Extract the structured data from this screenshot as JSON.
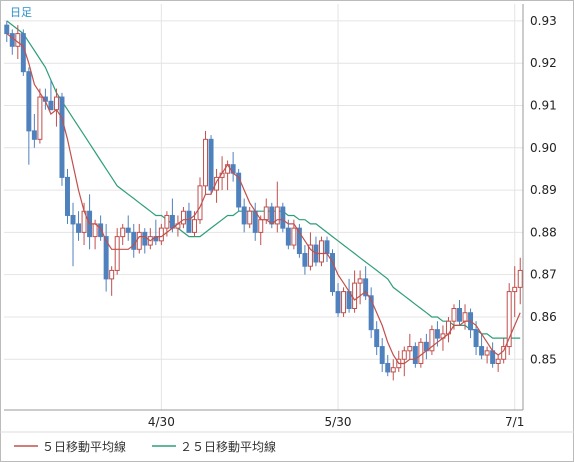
{
  "badge_label": "日足",
  "colors": {
    "bull": "#c0504d",
    "bear": "#4f81bd",
    "ma5": "#c0504d",
    "ma25": "#2e9e78",
    "grid": "#e4e4e4",
    "axis": "#999999"
  },
  "legend": [
    {
      "name": "５日移動平均線",
      "color": "#c0504d"
    },
    {
      "name": "２５日移動平均線",
      "color": "#2e9e78"
    }
  ],
  "chart_data": {
    "type": "candlestick",
    "ylim": [
      0.838,
      0.934
    ],
    "y_ticks": [
      0.85,
      0.86,
      0.87,
      0.88,
      0.89,
      0.9,
      0.91,
      0.92,
      0.93
    ],
    "y_tick_labels": [
      "0.85",
      "0.86",
      "0.87",
      "0.88",
      "0.89",
      "0.90",
      "0.91",
      "0.92",
      "0.93"
    ],
    "x_ticks": [
      {
        "index": 28,
        "label": "4/30"
      },
      {
        "index": 60,
        "label": "5/30"
      },
      {
        "index": 92,
        "label": "7/1"
      }
    ],
    "candles": [
      [
        0.929,
        0.93,
        0.925,
        0.927
      ],
      [
        0.927,
        0.928,
        0.922,
        0.924
      ],
      [
        0.924,
        0.929,
        0.921,
        0.927
      ],
      [
        0.927,
        0.928,
        0.917,
        0.918
      ],
      [
        0.918,
        0.919,
        0.896,
        0.904
      ],
      [
        0.904,
        0.908,
        0.9,
        0.902
      ],
      [
        0.902,
        0.914,
        0.901,
        0.912
      ],
      [
        0.912,
        0.914,
        0.909,
        0.911
      ],
      [
        0.911,
        0.916,
        0.909,
        0.909
      ],
      [
        0.909,
        0.914,
        0.905,
        0.912
      ],
      [
        0.912,
        0.913,
        0.891,
        0.893
      ],
      [
        0.893,
        0.895,
        0.882,
        0.884
      ],
      [
        0.884,
        0.887,
        0.872,
        0.882
      ],
      [
        0.882,
        0.885,
        0.878,
        0.88
      ],
      [
        0.88,
        0.887,
        0.877,
        0.885
      ],
      [
        0.885,
        0.889,
        0.876,
        0.879
      ],
      [
        0.879,
        0.883,
        0.876,
        0.882
      ],
      [
        0.882,
        0.884,
        0.878,
        0.879
      ],
      [
        0.879,
        0.882,
        0.866,
        0.869
      ],
      [
        0.869,
        0.872,
        0.865,
        0.871
      ],
      [
        0.871,
        0.881,
        0.87,
        0.879
      ],
      [
        0.879,
        0.882,
        0.877,
        0.881
      ],
      [
        0.881,
        0.884,
        0.878,
        0.88
      ],
      [
        0.88,
        0.882,
        0.874,
        0.876
      ],
      [
        0.876,
        0.882,
        0.875,
        0.88
      ],
      [
        0.88,
        0.881,
        0.875,
        0.877
      ],
      [
        0.877,
        0.881,
        0.876,
        0.879
      ],
      [
        0.879,
        0.883,
        0.877,
        0.878
      ],
      [
        0.878,
        0.882,
        0.877,
        0.881
      ],
      [
        0.881,
        0.885,
        0.879,
        0.884
      ],
      [
        0.884,
        0.888,
        0.88,
        0.881
      ],
      [
        0.881,
        0.884,
        0.879,
        0.882
      ],
      [
        0.882,
        0.886,
        0.881,
        0.885
      ],
      [
        0.885,
        0.887,
        0.88,
        0.88
      ],
      [
        0.88,
        0.885,
        0.879,
        0.883
      ],
      [
        0.883,
        0.893,
        0.882,
        0.891
      ],
      [
        0.891,
        0.904,
        0.889,
        0.902
      ],
      [
        0.902,
        0.903,
        0.889,
        0.89
      ],
      [
        0.89,
        0.895,
        0.887,
        0.893
      ],
      [
        0.893,
        0.898,
        0.89,
        0.894
      ],
      [
        0.894,
        0.897,
        0.89,
        0.896
      ],
      [
        0.896,
        0.899,
        0.892,
        0.894
      ],
      [
        0.894,
        0.895,
        0.885,
        0.886
      ],
      [
        0.886,
        0.888,
        0.88,
        0.882
      ],
      [
        0.882,
        0.886,
        0.881,
        0.885
      ],
      [
        0.885,
        0.887,
        0.878,
        0.88
      ],
      [
        0.88,
        0.884,
        0.877,
        0.883
      ],
      [
        0.883,
        0.888,
        0.882,
        0.886
      ],
      [
        0.886,
        0.887,
        0.881,
        0.882
      ],
      [
        0.882,
        0.892,
        0.88,
        0.886
      ],
      [
        0.886,
        0.887,
        0.88,
        0.881
      ],
      [
        0.881,
        0.883,
        0.876,
        0.877
      ],
      [
        0.877,
        0.883,
        0.876,
        0.881
      ],
      [
        0.881,
        0.882,
        0.874,
        0.875
      ],
      [
        0.875,
        0.877,
        0.87,
        0.872
      ],
      [
        0.872,
        0.88,
        0.871,
        0.877
      ],
      [
        0.877,
        0.879,
        0.872,
        0.873
      ],
      [
        0.873,
        0.879,
        0.872,
        0.878
      ],
      [
        0.878,
        0.879,
        0.873,
        0.875
      ],
      [
        0.875,
        0.876,
        0.865,
        0.866
      ],
      [
        0.866,
        0.868,
        0.86,
        0.861
      ],
      [
        0.861,
        0.867,
        0.86,
        0.866
      ],
      [
        0.866,
        0.869,
        0.861,
        0.862
      ],
      [
        0.862,
        0.871,
        0.861,
        0.868
      ],
      [
        0.868,
        0.871,
        0.863,
        0.869
      ],
      [
        0.869,
        0.872,
        0.864,
        0.865
      ],
      [
        0.865,
        0.867,
        0.855,
        0.857
      ],
      [
        0.857,
        0.859,
        0.851,
        0.853
      ],
      [
        0.853,
        0.855,
        0.847,
        0.849
      ],
      [
        0.849,
        0.851,
        0.846,
        0.847
      ],
      [
        0.847,
        0.85,
        0.845,
        0.848
      ],
      [
        0.848,
        0.852,
        0.847,
        0.85
      ],
      [
        0.85,
        0.853,
        0.846,
        0.852
      ],
      [
        0.852,
        0.856,
        0.85,
        0.853
      ],
      [
        0.853,
        0.854,
        0.848,
        0.849
      ],
      [
        0.849,
        0.855,
        0.848,
        0.854
      ],
      [
        0.854,
        0.856,
        0.85,
        0.852
      ],
      [
        0.852,
        0.858,
        0.851,
        0.857
      ],
      [
        0.857,
        0.859,
        0.853,
        0.855
      ],
      [
        0.855,
        0.858,
        0.852,
        0.856
      ],
      [
        0.856,
        0.86,
        0.854,
        0.859
      ],
      [
        0.859,
        0.863,
        0.857,
        0.862
      ],
      [
        0.862,
        0.864,
        0.858,
        0.859
      ],
      [
        0.859,
        0.863,
        0.857,
        0.861
      ],
      [
        0.861,
        0.862,
        0.855,
        0.857
      ],
      [
        0.857,
        0.859,
        0.851,
        0.853
      ],
      [
        0.853,
        0.856,
        0.85,
        0.851
      ],
      [
        0.851,
        0.853,
        0.849,
        0.852
      ],
      [
        0.852,
        0.854,
        0.848,
        0.849
      ],
      [
        0.849,
        0.851,
        0.847,
        0.85
      ],
      [
        0.85,
        0.855,
        0.849,
        0.853
      ],
      [
        0.853,
        0.868,
        0.851,
        0.866
      ],
      [
        0.866,
        0.872,
        0.86,
        0.867
      ],
      [
        0.867,
        0.874,
        0.863,
        0.871
      ]
    ],
    "series": [
      {
        "name": "５日移動平均線",
        "values": [
          0.927,
          0.926,
          0.925,
          0.924,
          0.92,
          0.915,
          0.913,
          0.911,
          0.908,
          0.909,
          0.907,
          0.902,
          0.896,
          0.89,
          0.885,
          0.882,
          0.882,
          0.881,
          0.878,
          0.876,
          0.876,
          0.876,
          0.876,
          0.877,
          0.879,
          0.879,
          0.878,
          0.879,
          0.879,
          0.88,
          0.881,
          0.882,
          0.883,
          0.883,
          0.884,
          0.886,
          0.889,
          0.889,
          0.892,
          0.894,
          0.896,
          0.894,
          0.893,
          0.89,
          0.887,
          0.885,
          0.883,
          0.883,
          0.882,
          0.883,
          0.883,
          0.882,
          0.882,
          0.88,
          0.878,
          0.876,
          0.875,
          0.875,
          0.875,
          0.873,
          0.87,
          0.868,
          0.866,
          0.864,
          0.865,
          0.866,
          0.864,
          0.861,
          0.858,
          0.854,
          0.851,
          0.849,
          0.849,
          0.85,
          0.85,
          0.851,
          0.852,
          0.853,
          0.854,
          0.855,
          0.856,
          0.858,
          0.858,
          0.859,
          0.859,
          0.858,
          0.856,
          0.854,
          0.852,
          0.851,
          0.852,
          0.855,
          0.858,
          0.861
        ]
      },
      {
        "name": "２５日移動平均線",
        "values": [
          0.93,
          0.929,
          0.928,
          0.927,
          0.925,
          0.923,
          0.921,
          0.919,
          0.916,
          0.913,
          0.911,
          0.909,
          0.907,
          0.905,
          0.903,
          0.901,
          0.899,
          0.897,
          0.895,
          0.893,
          0.891,
          0.89,
          0.889,
          0.888,
          0.887,
          0.886,
          0.885,
          0.884,
          0.884,
          0.883,
          0.882,
          0.881,
          0.88,
          0.879,
          0.879,
          0.879,
          0.88,
          0.881,
          0.882,
          0.883,
          0.884,
          0.884,
          0.885,
          0.885,
          0.885,
          0.885,
          0.885,
          0.885,
          0.885,
          0.885,
          0.885,
          0.884,
          0.884,
          0.883,
          0.883,
          0.882,
          0.882,
          0.881,
          0.88,
          0.879,
          0.878,
          0.877,
          0.876,
          0.875,
          0.874,
          0.873,
          0.872,
          0.871,
          0.87,
          0.869,
          0.867,
          0.866,
          0.865,
          0.864,
          0.863,
          0.862,
          0.861,
          0.86,
          0.86,
          0.859,
          0.859,
          0.858,
          0.858,
          0.858,
          0.857,
          0.857,
          0.856,
          0.856,
          0.855,
          0.855,
          0.855,
          0.855,
          0.855,
          0.855
        ]
      }
    ]
  }
}
